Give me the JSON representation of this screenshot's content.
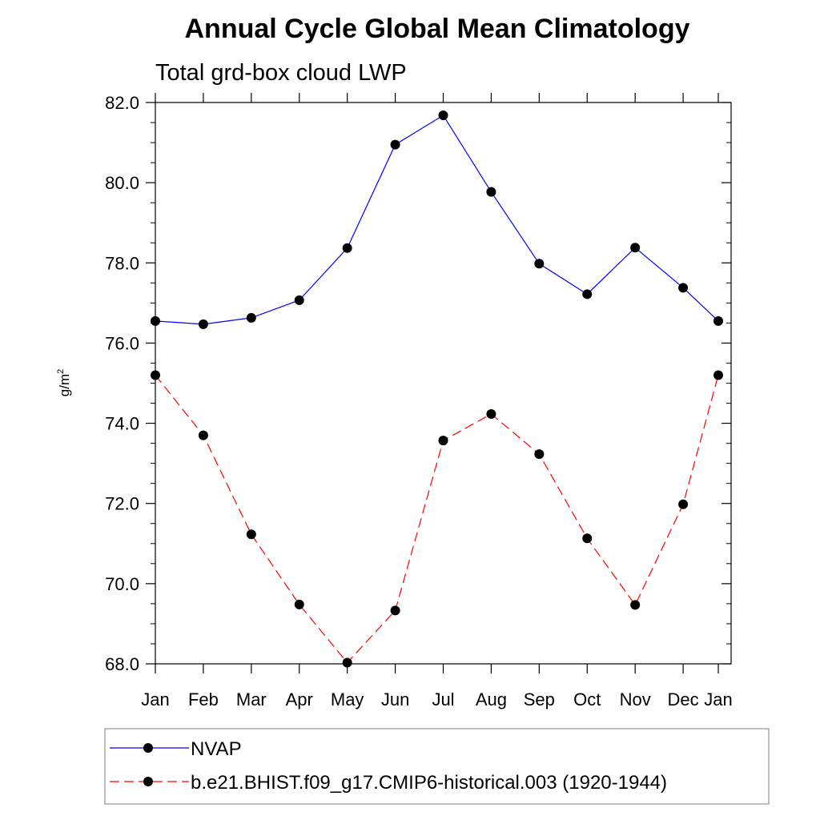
{
  "chart_data": {
    "type": "line",
    "title": "Annual Cycle Global Mean Climatology",
    "subtitle": "Total grd-box cloud LWP",
    "xlabel": "",
    "ylabel": "g/m",
    "ylabel_superscript": "2",
    "categories": [
      "Jan",
      "Feb",
      "Mar",
      "Apr",
      "May",
      "Jun",
      "Jul",
      "Aug",
      "Sep",
      "Oct",
      "Nov",
      "Dec",
      "Jan"
    ],
    "ylim": [
      68.0,
      82.0
    ],
    "yticks": [
      68.0,
      70.0,
      72.0,
      74.0,
      76.0,
      78.0,
      80.0,
      82.0
    ],
    "ytick_labels": [
      "68.0",
      "70.0",
      "72.0",
      "74.0",
      "76.0",
      "78.0",
      "80.0",
      "82.0"
    ],
    "grid": false,
    "legend_position": "bottom",
    "series": [
      {
        "name": "NVAP",
        "color": "#0000ff",
        "dash": "solid",
        "marker": "circle",
        "values": [
          76.55,
          76.47,
          76.63,
          77.07,
          78.37,
          80.95,
          81.68,
          79.77,
          77.98,
          77.22,
          78.38,
          77.38,
          76.55
        ]
      },
      {
        "name": "b.e21.BHIST.f09_g17.CMIP6-historical.003 (1920-1944)",
        "color": "#ff0000",
        "dash": "dashed",
        "marker": "circle",
        "values": [
          75.2,
          73.7,
          71.23,
          69.48,
          68.03,
          69.33,
          73.57,
          74.23,
          73.23,
          71.13,
          69.47,
          71.98,
          75.2
        ]
      }
    ]
  }
}
